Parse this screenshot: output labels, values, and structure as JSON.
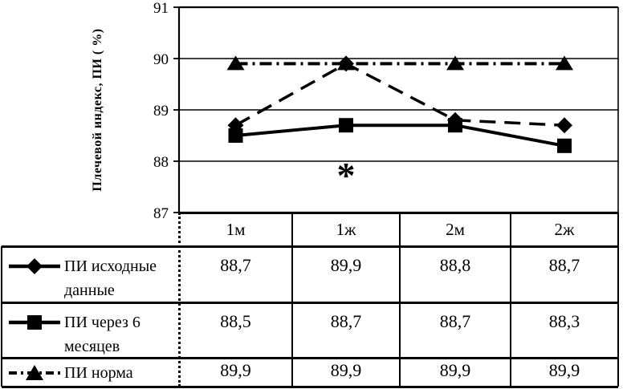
{
  "chart_data": {
    "type": "line",
    "title": "",
    "xlabel": "",
    "ylabel": "Плечевой индекс, ПИ ( %)",
    "ylim": [
      87,
      91
    ],
    "yticks": [
      91,
      90,
      89,
      88,
      87
    ],
    "grid": "horizontal",
    "legend_position": "table-left",
    "categories": [
      "1м",
      "1ж",
      "2м",
      "2ж"
    ],
    "series": [
      {
        "name": "ПИ исходные данные",
        "values": [
          88.7,
          89.9,
          88.8,
          88.7
        ],
        "marker": "diamond",
        "line": "dashed"
      },
      {
        "name": "ПИ через 6 месяцев",
        "values": [
          88.5,
          88.7,
          88.7,
          88.3
        ],
        "marker": "square",
        "line": "solid"
      },
      {
        "name": "ПИ норма",
        "values": [
          89.9,
          89.9,
          89.9,
          89.9
        ],
        "marker": "triangle",
        "line": "dashdot"
      }
    ],
    "annotation": {
      "text": "*",
      "below_category": "1ж",
      "y": 87.7
    }
  },
  "table": {
    "columns": [
      "1м",
      "1ж",
      "2м",
      "2ж"
    ],
    "rows": [
      {
        "label": "ПИ исходные данные",
        "marker": "diamond",
        "values": [
          "88,7",
          "89,9",
          "88,8",
          "88,7"
        ]
      },
      {
        "label": "ПИ через 6 месяцев",
        "marker": "square",
        "values": [
          "88,5",
          "88,7",
          "88,7",
          "88,3"
        ]
      },
      {
        "label": "ПИ норма",
        "marker": "triangle",
        "values": [
          "89,9",
          "89,9",
          "89,9",
          "89,9"
        ]
      }
    ]
  },
  "colors": {
    "ink": "#000000",
    "background": "#ffffff"
  }
}
